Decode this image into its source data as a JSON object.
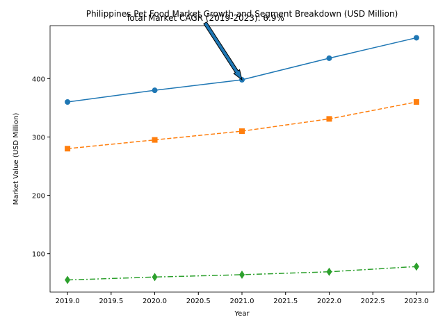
{
  "chart_data": {
    "type": "line",
    "title": "Philippines Pet Food Market Growth and Segment Breakdown (USD Million)",
    "annotation": "Total Market CAGR (2019-2023): 6.9%",
    "xlabel": "Year",
    "ylabel": "Market Value (USD Million)",
    "x": [
      2019,
      2020,
      2021,
      2022,
      2023
    ],
    "series": [
      {
        "color": "#1f77b4",
        "dash": "solid",
        "marker": "circle",
        "values": [
          360,
          380,
          398,
          435,
          470
        ]
      },
      {
        "color": "#ff7f0e",
        "dash": "dashed",
        "marker": "square",
        "values": [
          280,
          295,
          310,
          331,
          360
        ]
      },
      {
        "color": "#2ca02c",
        "dash": "dashdot",
        "marker": "diamond",
        "values": [
          55,
          60,
          64,
          69,
          78
        ]
      }
    ],
    "xlim": [
      2018.8,
      2023.2
    ],
    "xticks": [
      {
        "value": 2019,
        "label": "2019.0"
      },
      {
        "value": 2019.5,
        "label": "2019.5"
      },
      {
        "value": 2020,
        "label": "2020.0"
      },
      {
        "value": 2020.5,
        "label": "2020.5"
      },
      {
        "value": 2021,
        "label": "2021.0"
      },
      {
        "value": 2021.5,
        "label": "2021.5"
      },
      {
        "value": 2022,
        "label": "2022.0"
      },
      {
        "value": 2022.5,
        "label": "2022.5"
      },
      {
        "value": 2023,
        "label": "2023.0"
      }
    ],
    "ylim": [
      34.25,
      490.75
    ],
    "yticks": [
      100,
      200,
      300,
      400
    ],
    "grid": false
  }
}
